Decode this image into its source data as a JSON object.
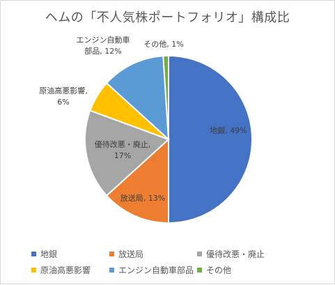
{
  "chart_data": {
    "type": "pie",
    "title": "ヘムの「不人気株ポートフォリオ」構成比",
    "start_angle_deg": 0,
    "direction": "clockwise",
    "slices": [
      {
        "name": "地銀",
        "value": 49,
        "color": "#4472C4",
        "label_lines": [
          "地銀, 49%"
        ]
      },
      {
        "name": "放送局",
        "value": 13,
        "color": "#ED7D31",
        "label_lines": [
          "放送局, 13%"
        ]
      },
      {
        "name": "優待改悪・廃止",
        "value": 17,
        "color": "#A5A5A5",
        "label_lines": [
          "優待改悪・廃止,",
          "17%"
        ]
      },
      {
        "name": "原油高悪影響",
        "value": 6,
        "color": "#FFC000",
        "label_lines": [
          "原油高悪影響,",
          "6%"
        ]
      },
      {
        "name": "エンジン自動車部品",
        "value": 12,
        "color": "#5B9BD5",
        "label_lines": [
          "エンジン自動車",
          "部品, 12%"
        ]
      },
      {
        "name": "その他",
        "value": 1,
        "color": "#70AD47",
        "label_lines": [
          "その他, 1%"
        ]
      }
    ],
    "legend_position": "bottom",
    "legend": [
      "地銀",
      "放送局",
      "優待改悪・廃止",
      "原油高悪影響",
      "エンジン自動車部品",
      "その他"
    ]
  }
}
